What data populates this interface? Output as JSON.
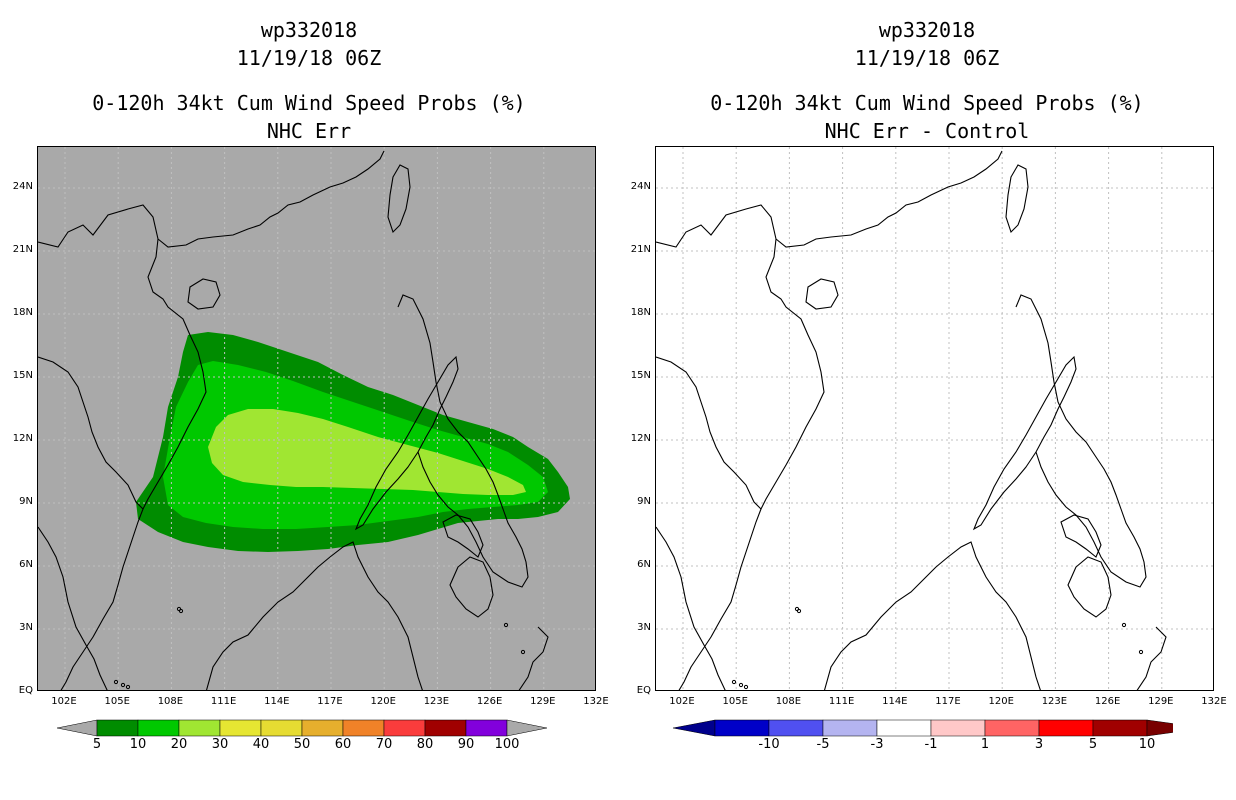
{
  "panels": [
    {
      "id": "nhc-err",
      "title_line1": "wp332018",
      "title_line2": "11/19/18 06Z",
      "title_line3": "0-120h 34kt Cum Wind Speed Probs (%)",
      "title_line4": "NHC Err",
      "background": "#a9a9a9"
    },
    {
      "id": "nhc-err-control",
      "title_line1": "wp332018",
      "title_line2": "11/19/18 06Z",
      "title_line3": "0-120h 34kt Cum Wind Speed Probs (%)",
      "title_line4": "NHC Err - Control",
      "background": "#ffffff"
    }
  ],
  "axes": {
    "lat_labels": [
      "EQ",
      "3N",
      "6N",
      "9N",
      "12N",
      "15N",
      "18N",
      "21N",
      "24N"
    ],
    "lon_labels": [
      "102E",
      "105E",
      "108E",
      "111E",
      "114E",
      "117E",
      "120E",
      "123E",
      "126E",
      "129E",
      "132E"
    ]
  },
  "colorbars": {
    "probs": {
      "labels": [
        "5",
        "10",
        "20",
        "30",
        "40",
        "50",
        "60",
        "70",
        "80",
        "90",
        "100"
      ],
      "colors": [
        "#008c00",
        "#00c800",
        "#a0e632",
        "#e6e632",
        "#e6dc32",
        "#e6af2d",
        "#f08228",
        "#fa3c3c",
        "#a00000",
        "#8200dc"
      ]
    },
    "diff": {
      "labels": [
        "-10",
        "-5",
        "-3",
        "-1",
        "1",
        "3",
        "5",
        "10"
      ],
      "colors": [
        "#0000c8",
        "#5050f0",
        "#b4b4f0",
        "#ffffff",
        "#ffc8c8",
        "#ff6464",
        "#ff0000",
        "#a00000"
      ],
      "end_colors": [
        "#00008c",
        "#780000"
      ]
    }
  },
  "probability_shading": [
    {
      "level": "5",
      "color": "#008c00"
    },
    {
      "level": "10",
      "color": "#00c800"
    },
    {
      "level": "20",
      "color": "#a0e632"
    }
  ]
}
